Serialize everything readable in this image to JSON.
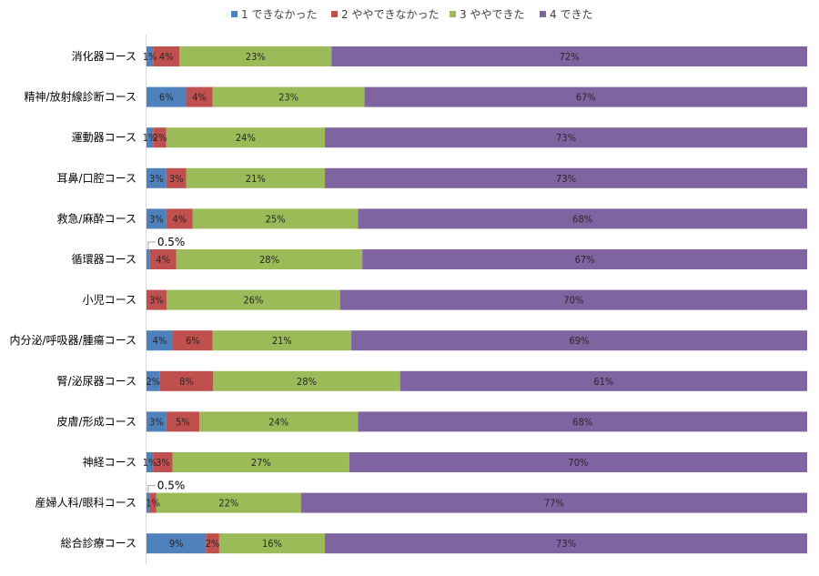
{
  "chart_data": {
    "type": "bar",
    "orientation": "horizontal",
    "stacked": "percent",
    "legend_position": "top",
    "grid": false,
    "xlim": [
      0,
      100
    ],
    "categories": [
      "消化器コース",
      "精神/放射線診断コース",
      "運動器コース",
      "耳鼻/口腔コース",
      "救急/麻酔コース",
      "循環器コース",
      "小児コース",
      "内分泌/呼吸器/腫瘍コース",
      "腎/泌尿器コース",
      "皮膚/形成コース",
      "神経コース",
      "産婦人科/眼科コース",
      "総合診療コース"
    ],
    "series": [
      {
        "name": "1 できなかった",
        "color": "#4f81bd",
        "values": [
          1,
          6,
          1,
          3,
          3,
          0.5,
          0,
          4,
          2,
          3,
          1,
          0.5,
          9
        ],
        "labels": [
          "1%",
          "6%",
          "1%",
          "3%",
          "3%",
          "0.5%",
          "",
          "4%",
          "2%",
          "3%",
          "1%",
          "0.5%",
          "9%"
        ]
      },
      {
        "name": "2 ややできなかった",
        "color": "#c0504d",
        "values": [
          4,
          4,
          2,
          3,
          4,
          4,
          3,
          6,
          8,
          5,
          3,
          1,
          2
        ],
        "labels": [
          "4%",
          "4%",
          "2%",
          "3%",
          "4%",
          "4%",
          "3%",
          "6%",
          "8%",
          "5%",
          "3%",
          "1%",
          "2%"
        ]
      },
      {
        "name": "3 ややできた",
        "color": "#9bbb59",
        "values": [
          23,
          23,
          24,
          21,
          25,
          28,
          26,
          21,
          28,
          24,
          27,
          22,
          16
        ],
        "labels": [
          "23%",
          "23%",
          "24%",
          "21%",
          "25%",
          "28%",
          "26%",
          "21%",
          "28%",
          "24%",
          "27%",
          "22%",
          "16%"
        ]
      },
      {
        "name": "4 できた",
        "color": "#8064a2",
        "values": [
          72,
          67,
          73,
          73,
          68,
          67,
          70,
          69,
          61,
          68,
          70,
          77,
          73
        ],
        "labels": [
          "72%",
          "67%",
          "73%",
          "73%",
          "68%",
          "67%",
          "70%",
          "69%",
          "61%",
          "68%",
          "70%",
          "77%",
          "73%"
        ]
      }
    ]
  }
}
